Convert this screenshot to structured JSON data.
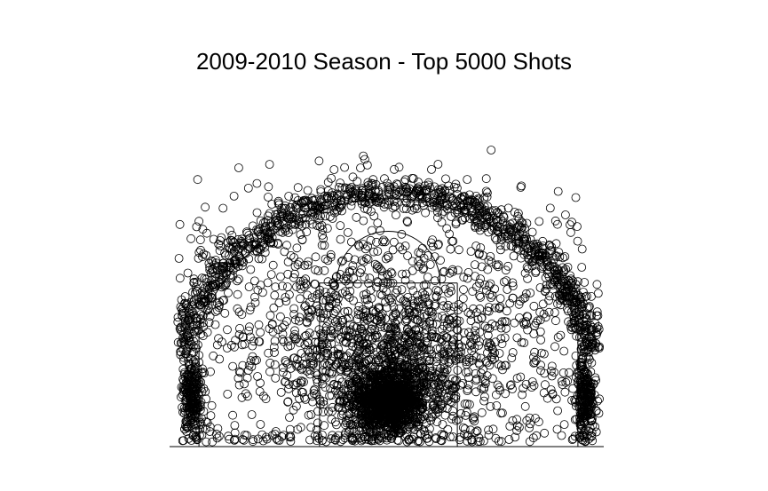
{
  "chart_data": {
    "type": "scatter",
    "title": "2009-2010 Season - Top 5000 Shots",
    "xlabel": "",
    "ylabel": "",
    "xlim": [
      -250,
      250
    ],
    "ylim": [
      -47.5,
      422.5
    ],
    "grid": false,
    "legend": "none",
    "marker": "open-circle",
    "n_points": 5000,
    "court": {
      "baseline_y": -47.5,
      "lane_width": 160,
      "free_throw_line_y": 142.5,
      "free_throw_circle_radius": 60,
      "three_point_radius": 237.5,
      "corner_three_x": 220,
      "corner_three_top_y": 92.5
    },
    "clusters": [
      {
        "zone": "restricted-area",
        "center": [
          0,
          5
        ],
        "spread": [
          22,
          18
        ],
        "count": 1250
      },
      {
        "zone": "paint",
        "center": [
          0,
          50
        ],
        "spread": [
          55,
          45
        ],
        "count": 700
      },
      {
        "zone": "left-corner-three",
        "center": [
          -228,
          10
        ],
        "spread": [
          6,
          25
        ],
        "count": 250
      },
      {
        "zone": "right-corner-three",
        "center": [
          228,
          10
        ],
        "spread": [
          6,
          25
        ],
        "count": 250
      },
      {
        "zone": "three-point-arc",
        "center": [
          0,
          0
        ],
        "radius": 248,
        "count": 1100
      },
      {
        "zone": "mid-range",
        "center": [
          0,
          90
        ],
        "spread": [
          150,
          90
        ],
        "count": 1450
      }
    ]
  }
}
